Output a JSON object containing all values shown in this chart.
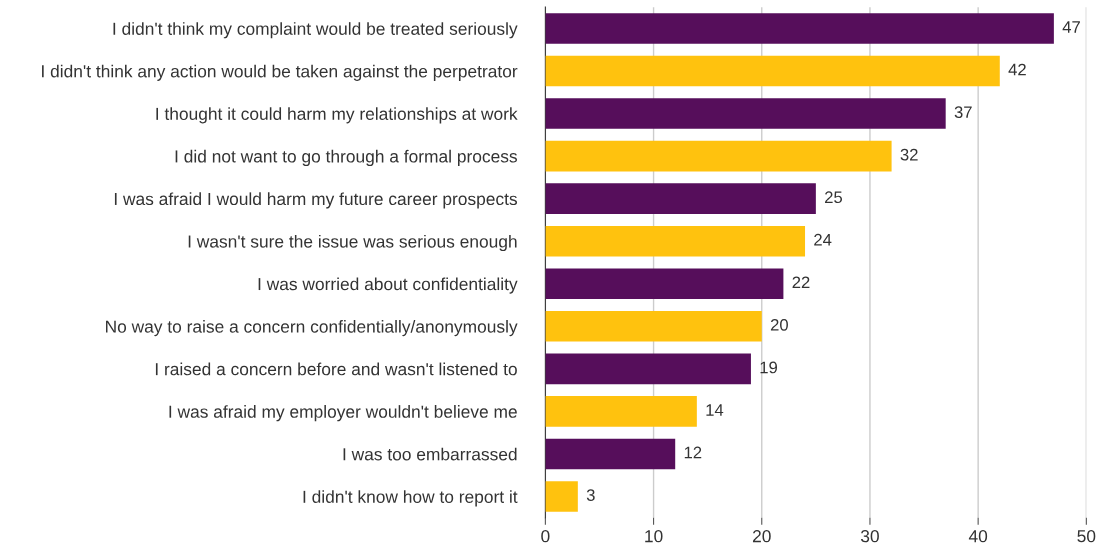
{
  "chart_data": {
    "type": "bar",
    "orientation": "horizontal",
    "categories": [
      "I didn't think my complaint would be treated seriously",
      "I didn't think any action would be taken against the perpetrator",
      "I thought it could harm my relationships at work",
      "I did not want to go through a formal process",
      "I was afraid I would harm my future career prospects",
      "I wasn't sure the issue was serious enough",
      "I was worried about confidentiality",
      "No way to raise a concern confidentially/anonymously",
      "I raised a concern before and wasn't listened to",
      "I was afraid my employer wouldn't believe me",
      "I was too embarrassed",
      "I didn't know how to report it"
    ],
    "values": [
      47,
      42,
      37,
      32,
      25,
      24,
      22,
      20,
      19,
      14,
      12,
      3
    ],
    "colors": [
      "#560e5b",
      "#ffc20e",
      "#560e5b",
      "#ffc20e",
      "#560e5b",
      "#ffc20e",
      "#560e5b",
      "#ffc20e",
      "#560e5b",
      "#ffc20e",
      "#560e5b",
      "#ffc20e"
    ],
    "xlim": [
      0,
      50
    ],
    "xticks": [
      0,
      10,
      20,
      30,
      40,
      50
    ],
    "grid": "x",
    "data_labels": true
  }
}
